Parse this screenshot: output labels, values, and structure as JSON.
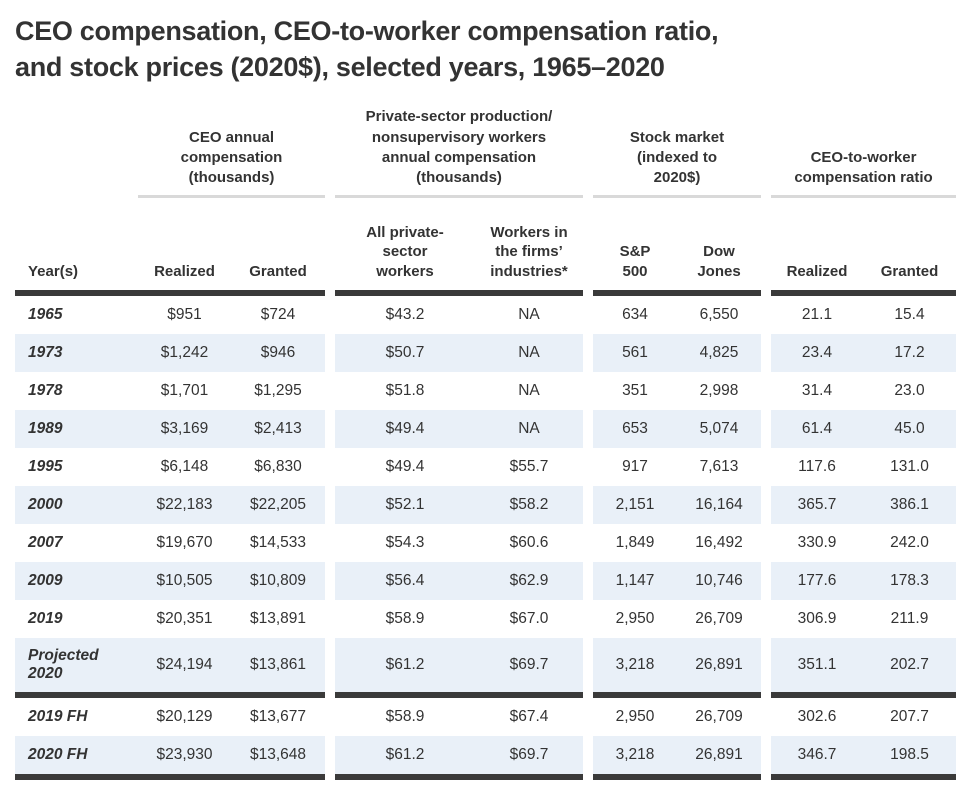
{
  "title": {
    "line1": "CEO compensation, CEO-to-worker compensation ratio,",
    "line2": "and stock prices (2020$), selected years, 1965–2020"
  },
  "colors": {
    "text": "#333333",
    "stripe": "#e9f0f8",
    "rule_dark": "#3a3a3a",
    "rule_gray": "#d9d9d9",
    "background": "#ffffff"
  },
  "chart_data": {
    "type": "table",
    "title": "CEO compensation, CEO-to-worker compensation ratio, and stock prices (2020$), selected years, 1965–2020",
    "column_groups": [
      "CEO annual compensation (thousands)",
      "Private-sector production/ nonsupervisory workers annual compensation (thousands)",
      "Stock market (indexed to 2020$)",
      "CEO-to-worker compensation ratio"
    ],
    "columns": {
      "year": "Year(s)",
      "realized": "Realized",
      "granted": "Granted",
      "all_workers": "All private-sector workers",
      "firm_workers": "Workers in the firms’ industries*",
      "sp500": "S&P 500",
      "dow_jones": "Dow Jones",
      "ratio_realized": "Realized",
      "ratio_granted": "Granted"
    },
    "rows_main": [
      {
        "year": "1965",
        "realized": "$951",
        "granted": "$724",
        "all_workers": "$43.2",
        "firm_workers": "NA",
        "sp500": "634",
        "dow_jones": "6,550",
        "ratio_realized": "21.1",
        "ratio_granted": "15.4"
      },
      {
        "year": "1973",
        "realized": "$1,242",
        "granted": "$946",
        "all_workers": "$50.7",
        "firm_workers": "NA",
        "sp500": "561",
        "dow_jones": "4,825",
        "ratio_realized": "23.4",
        "ratio_granted": "17.2"
      },
      {
        "year": "1978",
        "realized": "$1,701",
        "granted": "$1,295",
        "all_workers": "$51.8",
        "firm_workers": "NA",
        "sp500": "351",
        "dow_jones": "2,998",
        "ratio_realized": "31.4",
        "ratio_granted": "23.0"
      },
      {
        "year": "1989",
        "realized": "$3,169",
        "granted": "$2,413",
        "all_workers": "$49.4",
        "firm_workers": "NA",
        "sp500": "653",
        "dow_jones": "5,074",
        "ratio_realized": "61.4",
        "ratio_granted": "45.0"
      },
      {
        "year": "1995",
        "realized": "$6,148",
        "granted": "$6,830",
        "all_workers": "$49.4",
        "firm_workers": "$55.7",
        "sp500": "917",
        "dow_jones": "7,613",
        "ratio_realized": "117.6",
        "ratio_granted": "131.0"
      },
      {
        "year": "2000",
        "realized": "$22,183",
        "granted": "$22,205",
        "all_workers": "$52.1",
        "firm_workers": "$58.2",
        "sp500": "2,151",
        "dow_jones": "16,164",
        "ratio_realized": "365.7",
        "ratio_granted": "386.1"
      },
      {
        "year": "2007",
        "realized": "$19,670",
        "granted": "$14,533",
        "all_workers": "$54.3",
        "firm_workers": "$60.6",
        "sp500": "1,849",
        "dow_jones": "16,492",
        "ratio_realized": "330.9",
        "ratio_granted": "242.0"
      },
      {
        "year": "2009",
        "realized": "$10,505",
        "granted": "$10,809",
        "all_workers": "$56.4",
        "firm_workers": "$62.9",
        "sp500": "1,147",
        "dow_jones": "10,746",
        "ratio_realized": "177.6",
        "ratio_granted": "178.3"
      },
      {
        "year": "2019",
        "realized": "$20,351",
        "granted": "$13,891",
        "all_workers": "$58.9",
        "firm_workers": "$67.0",
        "sp500": "2,950",
        "dow_jones": "26,709",
        "ratio_realized": "306.9",
        "ratio_granted": "211.9"
      },
      {
        "year": "Projected 2020",
        "realized": "$24,194",
        "granted": "$13,861",
        "all_workers": "$61.2",
        "firm_workers": "$69.7",
        "sp500": "3,218",
        "dow_jones": "26,891",
        "ratio_realized": "351.1",
        "ratio_granted": "202.7"
      }
    ],
    "rows_first_half": [
      {
        "year": "2019 FH",
        "realized": "$20,129",
        "granted": "$13,677",
        "all_workers": "$58.9",
        "firm_workers": "$67.4",
        "sp500": "2,950",
        "dow_jones": "26,709",
        "ratio_realized": "302.6",
        "ratio_granted": "207.7"
      },
      {
        "year": "2020 FH",
        "realized": "$23,930",
        "granted": "$13,648",
        "all_workers": "$61.2",
        "firm_workers": "$69.7",
        "sp500": "3,218",
        "dow_jones": "26,891",
        "ratio_realized": "346.7",
        "ratio_granted": "198.5"
      }
    ]
  }
}
